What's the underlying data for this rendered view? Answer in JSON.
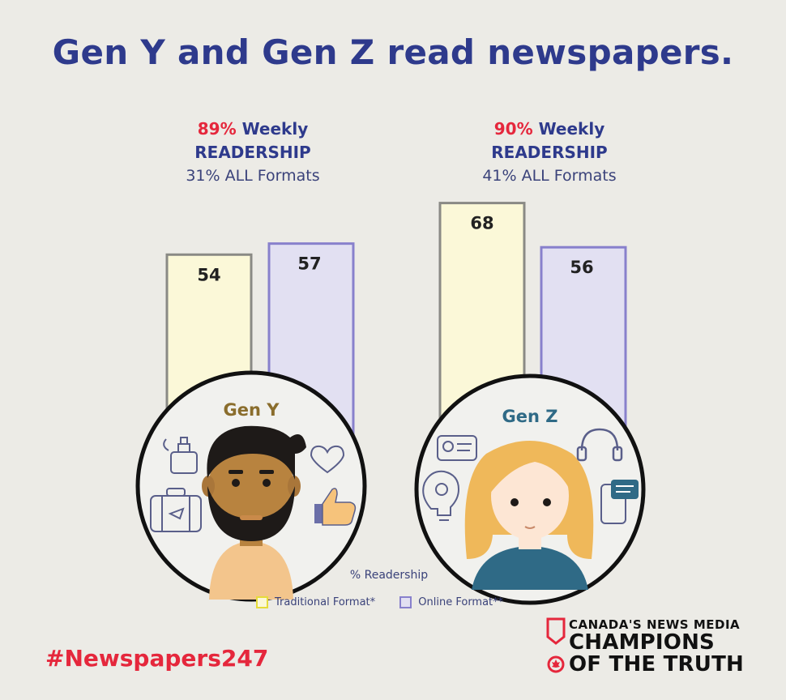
{
  "title": "Gen Y and Gen Z read newspapers.",
  "groups": [
    {
      "name": "Gen Y",
      "weekly_pct": "89%",
      "weekly_text": "Weekly",
      "readership": "READERSHIP",
      "all_formats": "31% ALL Formats"
    },
    {
      "name": "Gen Z",
      "weekly_pct": "90%",
      "weekly_text": "Weekly",
      "readership": "READERSHIP",
      "all_formats": "41% ALL Formats"
    }
  ],
  "chart_data": {
    "type": "bar",
    "categories": [
      "Gen Y",
      "Gen Z"
    ],
    "series": [
      {
        "name": "Traditional Format*",
        "values": [
          54,
          68
        ]
      },
      {
        "name": "Online Format**",
        "values": [
          57,
          56
        ]
      }
    ],
    "xlabel": "% Readership",
    "legend": "bottom",
    "grid": false
  },
  "colors": {
    "title": "#2e3a8c",
    "accent_red": "#e5273c",
    "traditional_fill": "#fbf8d8",
    "traditional_border": "#8a8a85",
    "online_fill": "#e2e0f2",
    "online_border": "#8880cc",
    "gen_y_label": "#8a6d2c",
    "gen_z_label": "#2f6a86"
  },
  "hashtag": "#Newspapers247",
  "brand": {
    "line1": "CANADA'S NEWS MEDIA",
    "line2": "CHAMPIONS",
    "line3": "OF THE TRUTH"
  },
  "icons": [
    "perfume-icon",
    "heart-icon",
    "suitcase-icon",
    "thumbs-up-icon",
    "id-card-icon",
    "headphones-icon",
    "lightbulb-gear-icon",
    "phone-chat-icon",
    "maple-leaf-icon"
  ]
}
